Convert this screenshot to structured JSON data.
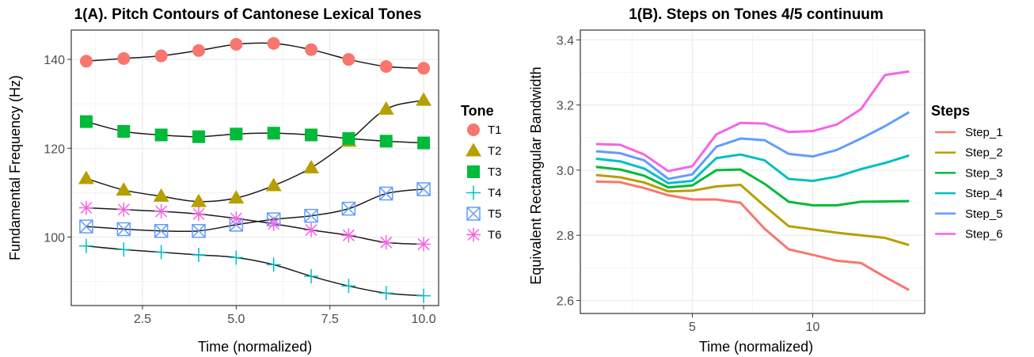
{
  "chart_data": [
    {
      "type": "line",
      "title": "1(A). Pitch Contours of Cantonese Lexical Tones",
      "xlabel": "Time (normalized)",
      "ylabel": "Fundamental Frequency (Hz)",
      "xlim": [
        0.6,
        10.4
      ],
      "ylim": [
        84.6,
        146.6
      ],
      "x_ticks": [
        2.5,
        5.0,
        7.5,
        10.0
      ],
      "x_tick_labels": [
        "2.5",
        "5.0",
        "7.5",
        "10.0"
      ],
      "y_ticks": [
        100,
        120,
        140
      ],
      "y_tick_labels": [
        "100",
        "120",
        "140"
      ],
      "grid": true,
      "legend_title": "Tone",
      "legend_position": "right",
      "x": [
        1,
        2,
        3,
        4,
        5,
        6,
        7,
        8,
        9,
        10
      ],
      "series": [
        {
          "name": "T1",
          "color": "#F8766D",
          "marker": "circle",
          "values": [
            139.6,
            140.2,
            140.8,
            142.0,
            143.4,
            143.6,
            142.2,
            140.0,
            138.4,
            138.0
          ]
        },
        {
          "name": "T2",
          "color": "#B79F00",
          "marker": "triangle",
          "values": [
            113.2,
            110.6,
            109.2,
            108.0,
            108.8,
            111.6,
            115.6,
            121.6,
            128.8,
            130.8
          ]
        },
        {
          "name": "T3",
          "color": "#00BA38",
          "marker": "square",
          "values": [
            126.0,
            123.8,
            123.0,
            122.6,
            123.2,
            123.4,
            123.0,
            122.2,
            121.6,
            121.2
          ]
        },
        {
          "name": "T4",
          "color": "#00BFC4",
          "marker": "plus",
          "values": [
            98.0,
            97.2,
            96.6,
            96.0,
            95.4,
            93.8,
            91.2,
            89.0,
            87.4,
            86.8
          ]
        },
        {
          "name": "T5",
          "color": "#619CFF",
          "marker": "boxx",
          "values": [
            102.4,
            101.8,
            101.4,
            101.4,
            102.8,
            104.0,
            104.8,
            106.4,
            109.8,
            110.8
          ]
        },
        {
          "name": "T6",
          "color": "#F564E3",
          "marker": "asterisk",
          "values": [
            106.6,
            106.2,
            105.8,
            105.2,
            104.2,
            103.0,
            101.6,
            100.4,
            98.8,
            98.4
          ]
        }
      ]
    },
    {
      "type": "line",
      "title": "1(B). Steps on Tones 4/5 continuum",
      "xlabel": "Time (normalized)",
      "ylabel": "Equivalent Rectangular Bandwidth",
      "xlim": [
        0.35,
        14.65
      ],
      "ylim": [
        2.56,
        3.43
      ],
      "x_ticks": [
        5,
        10
      ],
      "x_tick_labels": [
        "5",
        "10"
      ],
      "y_ticks": [
        2.6,
        2.8,
        3.0,
        3.2,
        3.4
      ],
      "y_tick_labels": [
        "2.6",
        "2.8",
        "3.0",
        "3.2",
        "3.4"
      ],
      "grid": true,
      "legend_title": "Steps",
      "legend_position": "right",
      "x": [
        1,
        2,
        3,
        4,
        5,
        6,
        7,
        8,
        9,
        10,
        11,
        12,
        13,
        14
      ],
      "series": [
        {
          "name": "Step_1",
          "color": "#F8766D",
          "values": [
            2.965,
            2.963,
            2.945,
            2.923,
            2.91,
            2.91,
            2.9,
            2.82,
            2.757,
            2.74,
            2.722,
            2.715,
            2.672,
            2.632
          ]
        },
        {
          "name": "Step_2",
          "color": "#B79F00",
          "values": [
            2.985,
            2.978,
            2.962,
            2.935,
            2.937,
            2.95,
            2.955,
            2.89,
            2.828,
            2.818,
            2.808,
            2.8,
            2.792,
            2.77
          ]
        },
        {
          "name": "Step_3",
          "color": "#00BA38",
          "values": [
            3.01,
            3.002,
            2.983,
            2.947,
            2.953,
            3.0,
            3.002,
            2.958,
            2.903,
            2.892,
            2.892,
            2.903,
            2.904,
            2.905
          ]
        },
        {
          "name": "Step_4",
          "color": "#00BFC4",
          "values": [
            3.035,
            3.027,
            3.005,
            2.96,
            2.967,
            3.037,
            3.048,
            3.03,
            2.973,
            2.967,
            2.98,
            3.003,
            3.022,
            3.045
          ]
        },
        {
          "name": "Step_5",
          "color": "#619CFF",
          "values": [
            3.058,
            3.052,
            3.03,
            2.973,
            2.987,
            3.072,
            3.097,
            3.092,
            3.05,
            3.042,
            3.062,
            3.097,
            3.135,
            3.178
          ]
        },
        {
          "name": "Step_6",
          "color": "#F564E3",
          "values": [
            3.08,
            3.078,
            3.048,
            2.997,
            3.012,
            3.11,
            3.145,
            3.143,
            3.117,
            3.12,
            3.14,
            3.187,
            3.292,
            3.303
          ]
        }
      ]
    }
  ]
}
